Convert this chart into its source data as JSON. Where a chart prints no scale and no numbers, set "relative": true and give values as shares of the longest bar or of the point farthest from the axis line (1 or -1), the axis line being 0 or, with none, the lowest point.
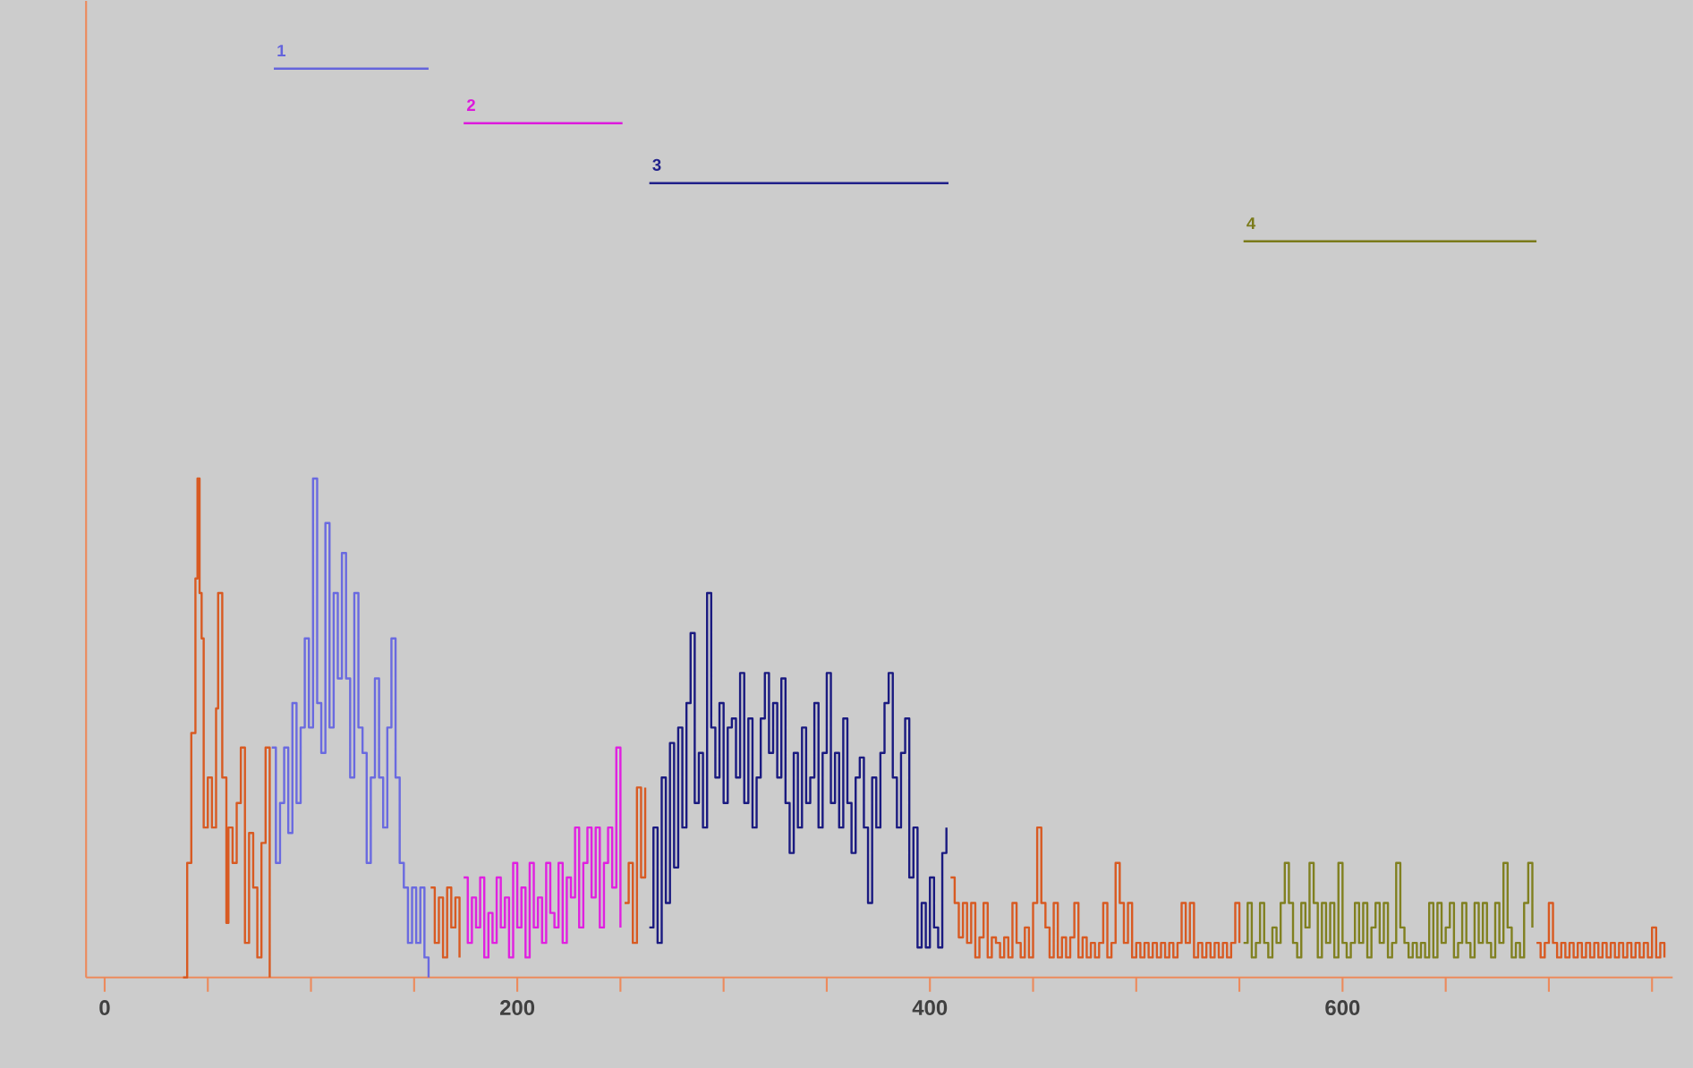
{
  "chart_data": {
    "type": "step",
    "relative": true,
    "xlim": [
      -9,
      760
    ],
    "xticks": [
      0,
      {
        "value": 50,
        "label": null
      },
      {
        "value": 100,
        "label": null
      },
      {
        "value": 150,
        "label": null
      },
      200,
      {
        "value": 250,
        "label": null
      },
      {
        "value": 300,
        "label": null
      },
      {
        "value": 350,
        "label": null
      },
      400,
      {
        "value": 450,
        "label": null
      },
      {
        "value": 500,
        "label": null
      },
      {
        "value": 550,
        "label": null
      },
      600,
      {
        "value": 650,
        "label": null
      },
      {
        "value": 700,
        "label": null
      },
      {
        "value": 750,
        "label": null
      }
    ],
    "series": [
      {
        "type": "line",
        "name": "1",
        "color": "#6464dc",
        "x": [
          82,
          157
        ],
        "values": [
          1,
          1
        ]
      },
      {
        "type": "line",
        "name": "2",
        "color": "#dc1adc",
        "x": [
          174,
          251
        ],
        "values": [
          0.94,
          0.94
        ]
      },
      {
        "type": "line",
        "name": "3",
        "color": "#20208a",
        "x": [
          264,
          409
        ],
        "values": [
          0.874,
          0.874
        ]
      },
      {
        "type": "line",
        "name": "4",
        "color": "#7a7a1a",
        "x": [
          552,
          694
        ],
        "values": [
          0.81,
          0.81
        ]
      },
      {
        "color": "#d85a22",
        "x": [
          38,
          40,
          42,
          44,
          45,
          46,
          47,
          48,
          50,
          52,
          54,
          55,
          57,
          59,
          60,
          62,
          64,
          66,
          68,
          70,
          72,
          74,
          76,
          78,
          80,
          81,
          158,
          160,
          162,
          164,
          166,
          168,
          170,
          172,
          174,
          252,
          254,
          256,
          258,
          260,
          262,
          264,
          410,
          412,
          414,
          416,
          418,
          420,
          422,
          424,
          426,
          428,
          430,
          432,
          434,
          436,
          438,
          440,
          442,
          444,
          446,
          448,
          450,
          452,
          454,
          456,
          458,
          460,
          462,
          464,
          466,
          468,
          470,
          472,
          474,
          476,
          478,
          480,
          482,
          484,
          486,
          488,
          490,
          492,
          494,
          496,
          498,
          500,
          502,
          504,
          506,
          508,
          510,
          512,
          514,
          516,
          518,
          520,
          522,
          524,
          526,
          528,
          530,
          532,
          534,
          536,
          538,
          540,
          542,
          544,
          546,
          548,
          550,
          552,
          694,
          696,
          698,
          700,
          702,
          704,
          706,
          708,
          710,
          712,
          714,
          716,
          718,
          720,
          722,
          724,
          726,
          728,
          730,
          732,
          734,
          736,
          738,
          740,
          742,
          744,
          746,
          748,
          750,
          752,
          754,
          756
        ],
        "values": [
          0,
          0.126,
          0.269,
          0.439,
          0.549,
          0.423,
          0.373,
          0.165,
          0.22,
          0.165,
          0.296,
          0.423,
          0.22,
          0.06,
          0.165,
          0.126,
          0.192,
          0.253,
          0.038,
          0.159,
          0.099,
          0.022,
          0.148,
          0.253,
          0,
          null,
          0.099,
          0.038,
          0.088,
          0.022,
          0.099,
          0.055,
          0.088,
          0.022,
          null,
          0.082,
          0.126,
          0.038,
          0.209,
          0.11,
          0.209,
          null,
          0.11,
          0.082,
          0.044,
          0.082,
          0.038,
          0.082,
          0.022,
          0.044,
          0.082,
          0.022,
          0.044,
          0.038,
          0.022,
          0.044,
          0.022,
          0.082,
          0.038,
          0.022,
          0.055,
          0.022,
          0.082,
          0.165,
          0.082,
          0.055,
          0.022,
          0.082,
          0.022,
          0.044,
          0.022,
          0.044,
          0.082,
          0.022,
          0.044,
          0.022,
          0.038,
          0.022,
          0.038,
          0.082,
          0.022,
          0.038,
          0.126,
          0.082,
          0.038,
          0.082,
          0.022,
          0.038,
          0.022,
          0.038,
          0.022,
          0.038,
          0.022,
          0.038,
          0.022,
          0.038,
          0.022,
          0.038,
          0.082,
          0.038,
          0.082,
          0.022,
          0.038,
          0.022,
          0.038,
          0.022,
          0.038,
          0.022,
          0.038,
          0.022,
          0.038,
          0.082,
          0.038,
          null,
          0.038,
          0.022,
          0.038,
          0.082,
          0.038,
          0.022,
          0.038,
          0.022,
          0.038,
          0.022,
          0.038,
          0.022,
          0.038,
          0.022,
          0.038,
          0.022,
          0.038,
          0.022,
          0.038,
          0.022,
          0.038,
          0.022,
          0.038,
          0.022,
          0.038,
          0.022,
          0.038,
          0.022,
          0.055,
          0.022,
          0.038,
          0.022
        ]
      },
      {
        "color": "#6a6ae0",
        "x": [
          81,
          83,
          85,
          87,
          89,
          91,
          93,
          95,
          97,
          99,
          101,
          103,
          105,
          107,
          109,
          111,
          113,
          115,
          117,
          119,
          121,
          123,
          125,
          127,
          129,
          131,
          133,
          135,
          137,
          139,
          141,
          143,
          145,
          147,
          149,
          151,
          153,
          155,
          157
        ],
        "values": [
          0.253,
          0.126,
          0.192,
          0.253,
          0.159,
          0.302,
          0.192,
          0.275,
          0.373,
          0.275,
          0.549,
          0.302,
          0.247,
          0.5,
          0.275,
          0.423,
          0.329,
          0.467,
          0.329,
          0.22,
          0.423,
          0.275,
          0.247,
          0.126,
          0.22,
          0.329,
          0.22,
          0.165,
          0.275,
          0.373,
          0.22,
          0.126,
          0.099,
          0.038,
          0.099,
          0.038,
          0.099,
          0.022,
          0
        ]
      },
      {
        "color": "#e020e0",
        "x": [
          174,
          176,
          178,
          180,
          182,
          184,
          186,
          188,
          190,
          192,
          194,
          196,
          198,
          200,
          202,
          204,
          206,
          208,
          210,
          212,
          214,
          216,
          218,
          220,
          222,
          224,
          226,
          228,
          230,
          232,
          234,
          236,
          238,
          240,
          242,
          244,
          246,
          248,
          250
        ],
        "values": [
          0.11,
          0.038,
          0.088,
          0.055,
          0.11,
          0.022,
          0.071,
          0.038,
          0.11,
          0.055,
          0.088,
          0.022,
          0.126,
          0.055,
          0.099,
          0.022,
          0.126,
          0.055,
          0.088,
          0.038,
          0.126,
          0.071,
          0.055,
          0.126,
          0.038,
          0.11,
          0.088,
          0.165,
          0.055,
          0.126,
          0.165,
          0.088,
          0.165,
          0.055,
          0.126,
          0.165,
          0.099,
          0.253,
          0.055
        ]
      },
      {
        "color": "#1a1a80",
        "x": [
          264,
          266,
          268,
          270,
          272,
          274,
          276,
          278,
          280,
          282,
          284,
          286,
          288,
          290,
          292,
          294,
          296,
          298,
          300,
          302,
          304,
          306,
          308,
          310,
          312,
          314,
          316,
          318,
          320,
          322,
          324,
          326,
          328,
          330,
          332,
          334,
          336,
          338,
          340,
          342,
          344,
          346,
          348,
          350,
          352,
          354,
          356,
          358,
          360,
          362,
          364,
          366,
          368,
          370,
          372,
          374,
          376,
          378,
          380,
          382,
          384,
          386,
          388,
          390,
          392,
          394,
          396,
          398,
          400,
          402,
          404,
          406,
          408
        ],
        "values": [
          0.055,
          0.165,
          0.038,
          0.22,
          0.082,
          0.258,
          0.121,
          0.275,
          0.165,
          0.302,
          0.379,
          0.192,
          0.247,
          0.165,
          0.423,
          0.275,
          0.22,
          0.302,
          0.192,
          0.275,
          0.285,
          0.22,
          0.335,
          0.192,
          0.285,
          0.165,
          0.22,
          0.285,
          0.335,
          0.247,
          0.302,
          0.22,
          0.329,
          0.192,
          0.137,
          0.247,
          0.165,
          0.275,
          0.192,
          0.22,
          0.302,
          0.165,
          0.247,
          0.335,
          0.192,
          0.247,
          0.165,
          0.285,
          0.192,
          0.137,
          0.22,
          0.242,
          0.165,
          0.082,
          0.22,
          0.165,
          0.247,
          0.302,
          0.335,
          0.22,
          0.165,
          0.247,
          0.285,
          0.11,
          0.165,
          0.033,
          0.082,
          0.033,
          0.11,
          0.055,
          0.033,
          0.137,
          0.165
        ]
      },
      {
        "color": "#808020",
        "x": [
          552,
          554,
          556,
          558,
          560,
          562,
          564,
          566,
          568,
          570,
          572,
          574,
          576,
          578,
          580,
          582,
          584,
          586,
          588,
          590,
          592,
          594,
          596,
          598,
          600,
          602,
          604,
          606,
          608,
          610,
          612,
          614,
          616,
          618,
          620,
          622,
          624,
          626,
          628,
          630,
          632,
          634,
          636,
          638,
          640,
          642,
          644,
          646,
          648,
          650,
          652,
          654,
          656,
          658,
          660,
          662,
          664,
          666,
          668,
          670,
          672,
          674,
          676,
          678,
          680,
          682,
          684,
          686,
          688,
          690,
          692
        ],
        "values": [
          0.038,
          0.082,
          0.022,
          0.038,
          0.082,
          0.038,
          0.022,
          0.055,
          0.038,
          0.082,
          0.126,
          0.082,
          0.038,
          0.022,
          0.082,
          0.055,
          0.126,
          0.082,
          0.022,
          0.082,
          0.038,
          0.082,
          0.022,
          0.126,
          0.038,
          0.022,
          0.038,
          0.082,
          0.038,
          0.082,
          0.022,
          0.055,
          0.082,
          0.038,
          0.082,
          0.022,
          0.038,
          0.126,
          0.055,
          0.038,
          0.022,
          0.038,
          0.022,
          0.038,
          0.022,
          0.082,
          0.022,
          0.082,
          0.038,
          0.055,
          0.082,
          0.022,
          0.038,
          0.082,
          0.038,
          0.022,
          0.082,
          0.038,
          0.082,
          0.038,
          0.022,
          0.082,
          0.038,
          0.126,
          0.055,
          0.022,
          0.038,
          0.022,
          0.082,
          0.126,
          0.055
        ]
      }
    ]
  }
}
